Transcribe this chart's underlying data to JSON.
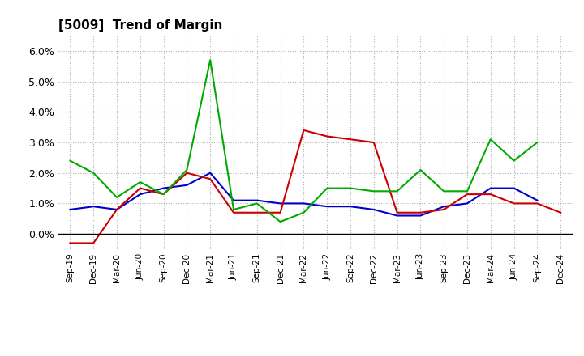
{
  "title": "[5009]  Trend of Margin",
  "x_labels": [
    "Sep-19",
    "Dec-19",
    "Mar-20",
    "Jun-20",
    "Sep-20",
    "Dec-20",
    "Mar-21",
    "Jun-21",
    "Sep-21",
    "Dec-21",
    "Mar-22",
    "Jun-22",
    "Sep-22",
    "Dec-22",
    "Mar-23",
    "Jun-23",
    "Sep-23",
    "Dec-23",
    "Mar-24",
    "Jun-24",
    "Sep-24",
    "Dec-24"
  ],
  "ordinary_income": [
    0.008,
    0.009,
    0.008,
    0.013,
    0.015,
    0.016,
    0.02,
    0.011,
    0.011,
    0.01,
    0.01,
    0.009,
    0.009,
    0.008,
    0.006,
    0.006,
    0.009,
    0.01,
    0.015,
    0.015,
    0.011,
    null
  ],
  "net_income": [
    -0.003,
    -0.003,
    0.008,
    0.015,
    0.013,
    0.02,
    0.018,
    0.007,
    0.007,
    0.007,
    0.034,
    0.032,
    0.031,
    0.03,
    0.007,
    0.007,
    0.008,
    0.013,
    0.013,
    0.01,
    0.01,
    0.007
  ],
  "operating_cashflow": [
    0.024,
    0.02,
    0.012,
    0.017,
    0.013,
    0.021,
    0.057,
    0.008,
    0.01,
    0.004,
    0.007,
    0.015,
    0.015,
    0.014,
    0.014,
    0.021,
    0.014,
    0.014,
    0.031,
    0.024,
    0.03,
    null
  ],
  "colors": {
    "ordinary_income": "#0000cc",
    "net_income": "#cc0000",
    "operating_cashflow": "#00aa00"
  },
  "ylim": [
    -0.005,
    0.065
  ],
  "yticks": [
    0.0,
    0.01,
    0.02,
    0.03,
    0.04,
    0.05,
    0.06
  ],
  "ytick_labels": [
    "0.0%",
    "1.0%",
    "2.0%",
    "3.0%",
    "4.0%",
    "5.0%",
    "6.0%"
  ],
  "background_color": "#ffffff",
  "grid_color": "#b0b0b0"
}
